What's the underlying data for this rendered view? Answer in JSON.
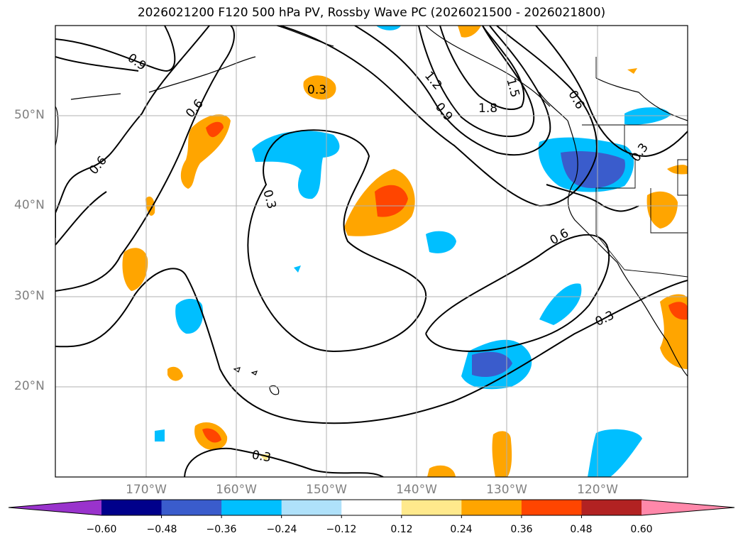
{
  "title": "2026021200 F120 500 hPa PV, Rossby Wave PC (2026021500 - 2026021800)",
  "lat_labels": [
    "50°N",
    "40°N",
    "30°N",
    "20°N"
  ],
  "lon_labels": [
    "170°W",
    "160°W",
    "150°W",
    "140°W",
    "130°W",
    "120°W"
  ],
  "contour_labels": [
    "0.9",
    "0.6",
    "0.6",
    "0.3",
    "0.3",
    "1.2",
    "0.9",
    "1.8",
    "1.5",
    "0.6",
    "0.6",
    "0.3",
    "0.3",
    "0.3"
  ],
  "colorbar": {
    "ticks": [
      "−0.60",
      "−0.48",
      "−0.36",
      "−0.24",
      "−0.12",
      "0.12",
      "0.24",
      "0.36",
      "0.48",
      "0.60"
    ],
    "colors": [
      "#9933cc",
      "#00008b",
      "#3a5ccc",
      "#00bfff",
      "#afe1fa",
      "#ffffff",
      "#ffe98c",
      "#ffa500",
      "#ff4500",
      "#b22222",
      "#ff88aa"
    ]
  }
}
